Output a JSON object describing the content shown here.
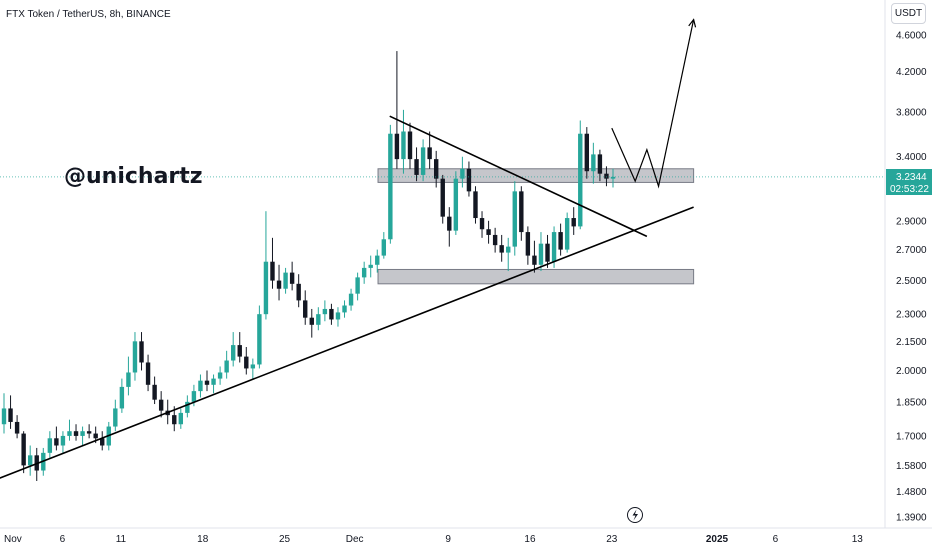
{
  "header": {
    "title": "FTX Token / TetherUS, 8h, BINANCE",
    "currency": "USDT",
    "watermark": "@unichartz"
  },
  "price_badge": {
    "price": "3.2344",
    "countdown": "02:53:22"
  },
  "colors": {
    "up": "#26a69a",
    "down": "#131722",
    "zone": "#9598a1",
    "line": "#000000",
    "price_line": "#26a69a"
  },
  "chart_data": {
    "type": "candlestick",
    "symbol": "FTX Token / TetherUS",
    "interval": "8h",
    "exchange": "BINANCE",
    "scale": "log",
    "y_ticks": [
      "4.6000",
      "4.2000",
      "3.8000",
      "3.4000",
      "2.9000",
      "2.7000",
      "2.5000",
      "2.3000",
      "2.1500",
      "2.0000",
      "1.8500",
      "1.7000",
      "1.5800",
      "1.4800",
      "1.3900"
    ],
    "y_tick_values": [
      4.6,
      4.2,
      3.8,
      3.4,
      2.9,
      2.7,
      2.5,
      2.3,
      2.15,
      2.0,
      1.85,
      1.7,
      1.58,
      1.48,
      1.39
    ],
    "x_ticks": [
      {
        "label": "Nov",
        "date": "2024-11-01"
      },
      {
        "label": "6",
        "date": "2024-11-06"
      },
      {
        "label": "11",
        "date": "2024-11-11"
      },
      {
        "label": "18",
        "date": "2024-11-18"
      },
      {
        "label": "25",
        "date": "2024-11-25"
      },
      {
        "label": "Dec",
        "date": "2024-12-01"
      },
      {
        "label": "9",
        "date": "2024-12-09"
      },
      {
        "label": "16",
        "date": "2024-12-16"
      },
      {
        "label": "23",
        "date": "2024-12-23"
      },
      {
        "label": "2025",
        "date": "2025-01-01"
      },
      {
        "label": "6",
        "date": "2025-01-06"
      },
      {
        "label": "13",
        "date": "2025-01-13"
      }
    ],
    "last_price": 3.2344,
    "zones": [
      {
        "date_from": "2024-12-03",
        "date_to": "2024-12-30",
        "low": 3.19,
        "high": 3.3
      },
      {
        "date_from": "2024-12-03",
        "date_to": "2024-12-30",
        "low": 2.48,
        "high": 2.57
      }
    ],
    "trendlines": [
      {
        "from": {
          "date": "2024-10-31",
          "price": 1.52
        },
        "to": {
          "date": "2024-12-30",
          "price": 3.0
        }
      },
      {
        "from": {
          "date": "2024-12-04",
          "price": 3.76
        },
        "to": {
          "date": "2024-12-26",
          "price": 2.79
        }
      }
    ],
    "projection": [
      {
        "date": "2024-12-23",
        "price": 3.65
      },
      {
        "date": "2024-12-25",
        "price": 3.2
      },
      {
        "date": "2024-12-26",
        "price": 3.46
      },
      {
        "date": "2024-12-27",
        "price": 3.16
      },
      {
        "date": "2024-12-30",
        "price": 4.78
      }
    ],
    "candles": [
      {
        "o": 1.75,
        "h": 1.89,
        "l": 1.71,
        "c": 1.82
      },
      {
        "o": 1.82,
        "h": 1.88,
        "l": 1.73,
        "c": 1.76
      },
      {
        "o": 1.76,
        "h": 1.79,
        "l": 1.69,
        "c": 1.71
      },
      {
        "o": 1.71,
        "h": 1.72,
        "l": 1.55,
        "c": 1.58
      },
      {
        "o": 1.58,
        "h": 1.66,
        "l": 1.54,
        "c": 1.62
      },
      {
        "o": 1.62,
        "h": 1.65,
        "l": 1.52,
        "c": 1.56
      },
      {
        "o": 1.56,
        "h": 1.65,
        "l": 1.54,
        "c": 1.63
      },
      {
        "o": 1.63,
        "h": 1.72,
        "l": 1.61,
        "c": 1.69
      },
      {
        "o": 1.69,
        "h": 1.74,
        "l": 1.64,
        "c": 1.66
      },
      {
        "o": 1.66,
        "h": 1.72,
        "l": 1.63,
        "c": 1.7
      },
      {
        "o": 1.7,
        "h": 1.77,
        "l": 1.68,
        "c": 1.72
      },
      {
        "o": 1.72,
        "h": 1.75,
        "l": 1.68,
        "c": 1.7
      },
      {
        "o": 1.7,
        "h": 1.74,
        "l": 1.66,
        "c": 1.72
      },
      {
        "o": 1.72,
        "h": 1.75,
        "l": 1.69,
        "c": 1.71
      },
      {
        "o": 1.71,
        "h": 1.74,
        "l": 1.67,
        "c": 1.69
      },
      {
        "o": 1.69,
        "h": 1.72,
        "l": 1.64,
        "c": 1.66
      },
      {
        "o": 1.66,
        "h": 1.76,
        "l": 1.64,
        "c": 1.74
      },
      {
        "o": 1.74,
        "h": 1.86,
        "l": 1.72,
        "c": 1.82
      },
      {
        "o": 1.82,
        "h": 1.96,
        "l": 1.8,
        "c": 1.92
      },
      {
        "o": 1.92,
        "h": 2.07,
        "l": 1.88,
        "c": 1.99
      },
      {
        "o": 1.99,
        "h": 2.2,
        "l": 1.95,
        "c": 2.15
      },
      {
        "o": 2.15,
        "h": 2.2,
        "l": 2.0,
        "c": 2.04
      },
      {
        "o": 2.04,
        "h": 2.08,
        "l": 1.9,
        "c": 1.93
      },
      {
        "o": 1.93,
        "h": 1.97,
        "l": 1.84,
        "c": 1.86
      },
      {
        "o": 1.86,
        "h": 1.9,
        "l": 1.78,
        "c": 1.81
      },
      {
        "o": 1.81,
        "h": 1.86,
        "l": 1.75,
        "c": 1.79
      },
      {
        "o": 1.79,
        "h": 1.83,
        "l": 1.72,
        "c": 1.75
      },
      {
        "o": 1.75,
        "h": 1.82,
        "l": 1.73,
        "c": 1.8
      },
      {
        "o": 1.8,
        "h": 1.88,
        "l": 1.78,
        "c": 1.85
      },
      {
        "o": 1.85,
        "h": 1.93,
        "l": 1.83,
        "c": 1.9
      },
      {
        "o": 1.9,
        "h": 1.98,
        "l": 1.87,
        "c": 1.95
      },
      {
        "o": 1.95,
        "h": 2.0,
        "l": 1.9,
        "c": 1.93
      },
      {
        "o": 1.93,
        "h": 1.98,
        "l": 1.89,
        "c": 1.96
      },
      {
        "o": 1.96,
        "h": 2.02,
        "l": 1.93,
        "c": 1.99
      },
      {
        "o": 1.99,
        "h": 2.1,
        "l": 1.96,
        "c": 2.05
      },
      {
        "o": 2.05,
        "h": 2.2,
        "l": 2.02,
        "c": 2.13
      },
      {
        "o": 2.13,
        "h": 2.2,
        "l": 2.04,
        "c": 2.07
      },
      {
        "o": 2.07,
        "h": 2.12,
        "l": 1.98,
        "c": 2.01
      },
      {
        "o": 2.01,
        "h": 2.06,
        "l": 1.96,
        "c": 2.03
      },
      {
        "o": 2.03,
        "h": 2.35,
        "l": 2.01,
        "c": 2.3
      },
      {
        "o": 2.3,
        "h": 2.97,
        "l": 2.27,
        "c": 2.62
      },
      {
        "o": 2.62,
        "h": 2.78,
        "l": 2.45,
        "c": 2.5
      },
      {
        "o": 2.5,
        "h": 2.6,
        "l": 2.38,
        "c": 2.45
      },
      {
        "o": 2.45,
        "h": 2.58,
        "l": 2.42,
        "c": 2.55
      },
      {
        "o": 2.55,
        "h": 2.62,
        "l": 2.44,
        "c": 2.48
      },
      {
        "o": 2.48,
        "h": 2.54,
        "l": 2.34,
        "c": 2.38
      },
      {
        "o": 2.38,
        "h": 2.44,
        "l": 2.24,
        "c": 2.28
      },
      {
        "o": 2.28,
        "h": 2.33,
        "l": 2.17,
        "c": 2.24
      },
      {
        "o": 2.24,
        "h": 2.34,
        "l": 2.21,
        "c": 2.3
      },
      {
        "o": 2.3,
        "h": 2.38,
        "l": 2.26,
        "c": 2.33
      },
      {
        "o": 2.33,
        "h": 2.36,
        "l": 2.24,
        "c": 2.27
      },
      {
        "o": 2.27,
        "h": 2.34,
        "l": 2.23,
        "c": 2.31
      },
      {
        "o": 2.31,
        "h": 2.38,
        "l": 2.28,
        "c": 2.35
      },
      {
        "o": 2.35,
        "h": 2.45,
        "l": 2.32,
        "c": 2.42
      },
      {
        "o": 2.42,
        "h": 2.55,
        "l": 2.38,
        "c": 2.52
      },
      {
        "o": 2.52,
        "h": 2.62,
        "l": 2.48,
        "c": 2.58
      },
      {
        "o": 2.58,
        "h": 2.66,
        "l": 2.52,
        "c": 2.6
      },
      {
        "o": 2.6,
        "h": 2.7,
        "l": 2.55,
        "c": 2.66
      },
      {
        "o": 2.66,
        "h": 2.82,
        "l": 2.64,
        "c": 2.77
      },
      {
        "o": 2.77,
        "h": 3.68,
        "l": 2.74,
        "c": 3.6
      },
      {
        "o": 3.6,
        "h": 4.42,
        "l": 3.3,
        "c": 3.38
      },
      {
        "o": 3.38,
        "h": 3.82,
        "l": 3.26,
        "c": 3.62
      },
      {
        "o": 3.62,
        "h": 3.7,
        "l": 3.3,
        "c": 3.38
      },
      {
        "o": 3.38,
        "h": 3.48,
        "l": 3.2,
        "c": 3.25
      },
      {
        "o": 3.25,
        "h": 3.55,
        "l": 3.2,
        "c": 3.48
      },
      {
        "o": 3.48,
        "h": 3.62,
        "l": 3.3,
        "c": 3.38
      },
      {
        "o": 3.38,
        "h": 3.45,
        "l": 3.15,
        "c": 3.22
      },
      {
        "o": 3.22,
        "h": 3.25,
        "l": 2.88,
        "c": 2.93
      },
      {
        "o": 2.93,
        "h": 3.0,
        "l": 2.72,
        "c": 2.83
      },
      {
        "o": 2.83,
        "h": 3.28,
        "l": 2.8,
        "c": 3.22
      },
      {
        "o": 3.22,
        "h": 3.4,
        "l": 3.15,
        "c": 3.3
      },
      {
        "o": 3.3,
        "h": 3.36,
        "l": 3.08,
        "c": 3.12
      },
      {
        "o": 3.12,
        "h": 3.16,
        "l": 2.88,
        "c": 2.92
      },
      {
        "o": 2.92,
        "h": 2.97,
        "l": 2.78,
        "c": 2.84
      },
      {
        "o": 2.84,
        "h": 2.9,
        "l": 2.74,
        "c": 2.8
      },
      {
        "o": 2.8,
        "h": 2.85,
        "l": 2.68,
        "c": 2.73
      },
      {
        "o": 2.73,
        "h": 2.8,
        "l": 2.62,
        "c": 2.68
      },
      {
        "o": 2.68,
        "h": 2.78,
        "l": 2.56,
        "c": 2.72
      },
      {
        "o": 2.72,
        "h": 3.2,
        "l": 2.66,
        "c": 3.12
      },
      {
        "o": 3.12,
        "h": 3.16,
        "l": 2.76,
        "c": 2.82
      },
      {
        "o": 2.82,
        "h": 2.86,
        "l": 2.6,
        "c": 2.66
      },
      {
        "o": 2.66,
        "h": 2.76,
        "l": 2.55,
        "c": 2.6
      },
      {
        "o": 2.6,
        "h": 2.82,
        "l": 2.56,
        "c": 2.74
      },
      {
        "o": 2.74,
        "h": 2.8,
        "l": 2.58,
        "c": 2.62
      },
      {
        "o": 2.62,
        "h": 2.86,
        "l": 2.58,
        "c": 2.82
      },
      {
        "o": 2.82,
        "h": 2.88,
        "l": 2.66,
        "c": 2.7
      },
      {
        "o": 2.7,
        "h": 2.96,
        "l": 2.68,
        "c": 2.92
      },
      {
        "o": 2.92,
        "h": 3.0,
        "l": 2.8,
        "c": 2.86
      },
      {
        "o": 2.86,
        "h": 3.72,
        "l": 2.84,
        "c": 3.6
      },
      {
        "o": 3.6,
        "h": 3.66,
        "l": 3.22,
        "c": 3.28
      },
      {
        "o": 3.28,
        "h": 3.52,
        "l": 3.18,
        "c": 3.42
      },
      {
        "o": 3.42,
        "h": 3.46,
        "l": 3.2,
        "c": 3.26
      },
      {
        "o": 3.26,
        "h": 3.32,
        "l": 3.16,
        "c": 3.22
      },
      {
        "o": 3.22,
        "h": 3.3,
        "l": 3.15,
        "c": 3.2344
      }
    ]
  }
}
